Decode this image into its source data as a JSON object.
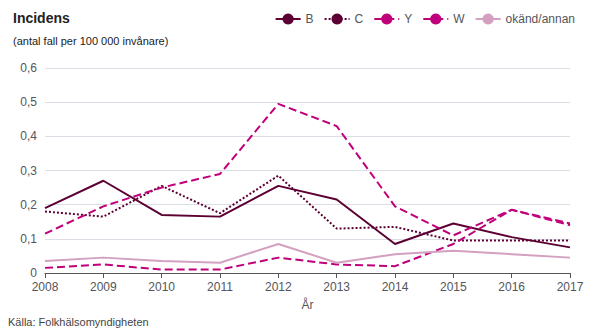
{
  "chart_data": {
    "type": "line",
    "title": "Incidens",
    "subtitle": "(antal fall per 100 000 invånare)",
    "xlabel": "År",
    "annotations": [
      "Källa: Folkhälsomyndigheten"
    ],
    "x": [
      2008,
      2009,
      2010,
      2011,
      2012,
      2013,
      2014,
      2015,
      2016,
      2017
    ],
    "series": [
      {
        "name": "B",
        "color": "#5c0033",
        "line_style": "solid",
        "values": [
          0.19,
          0.27,
          0.17,
          0.165,
          0.255,
          0.215,
          0.085,
          0.145,
          0.105,
          0.075
        ]
      },
      {
        "name": "C",
        "color": "#5c0033",
        "line_style": "dotted",
        "values": [
          0.18,
          0.165,
          0.255,
          0.175,
          0.285,
          0.13,
          0.135,
          0.095,
          0.095,
          0.095
        ]
      },
      {
        "name": "Y",
        "color": "#c0007a",
        "line_style": "dashed",
        "values": [
          0.115,
          0.195,
          0.25,
          0.29,
          0.495,
          0.43,
          0.195,
          0.11,
          0.185,
          0.145
        ]
      },
      {
        "name": "W",
        "color": "#c0007a",
        "line_style": "dashed",
        "values": [
          0.015,
          0.025,
          0.01,
          0.01,
          0.045,
          0.025,
          0.02,
          0.085,
          0.185,
          0.14
        ]
      },
      {
        "name": "okänd/annan",
        "color": "#d4a0c0",
        "line_style": "solid",
        "values": [
          0.035,
          0.045,
          0.035,
          0.03,
          0.085,
          0.03,
          0.055,
          0.065,
          0.055,
          0.045
        ]
      }
    ],
    "xlim": [
      2008,
      2017
    ],
    "xticks": [
      2008,
      2009,
      2010,
      2011,
      2012,
      2013,
      2014,
      2015,
      2016,
      2017
    ],
    "ylim": [
      0,
      0.6
    ],
    "yticks": [
      0,
      {
        "value": 0.1,
        "label": "0,1"
      },
      {
        "value": 0.2,
        "label": "0,2"
      },
      {
        "value": 0.3,
        "label": "0,3"
      },
      {
        "value": 0.4,
        "label": "0,4"
      },
      {
        "value": 0.5,
        "label": "0,5"
      },
      {
        "value": 0.6,
        "label": "0,6"
      }
    ],
    "grid": true,
    "legend": "top"
  }
}
